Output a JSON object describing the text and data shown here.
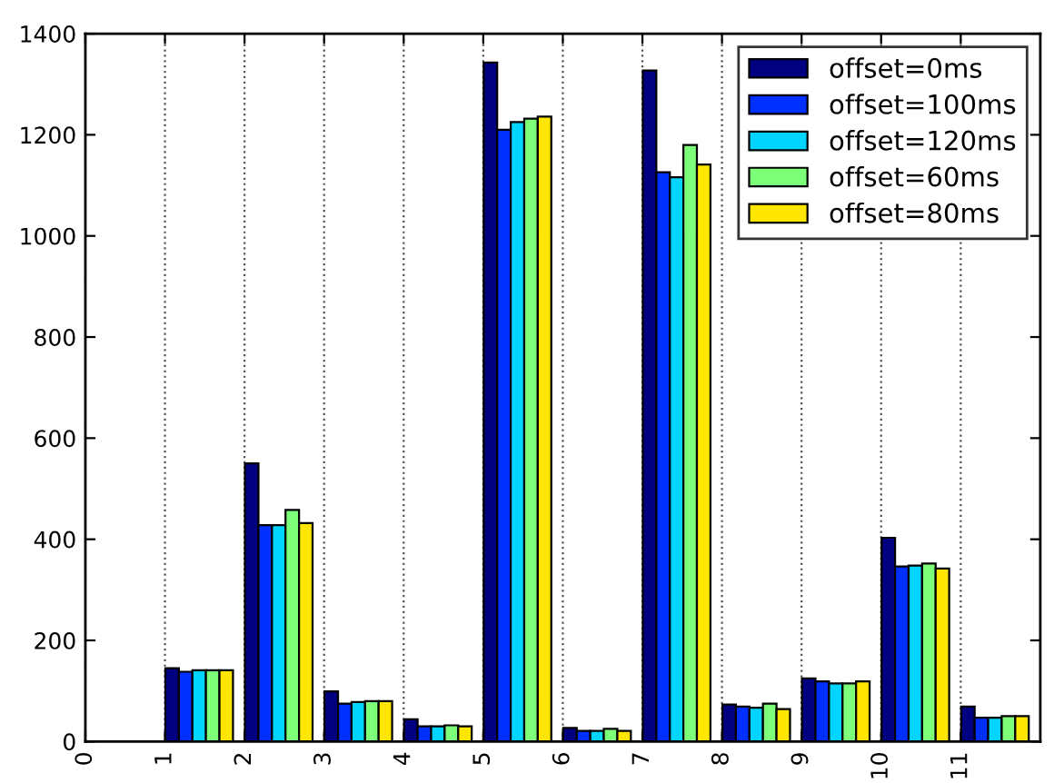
{
  "chart_data": {
    "type": "bar",
    "xlim": [
      0,
      12
    ],
    "xticks": [
      0,
      1,
      2,
      3,
      4,
      5,
      6,
      7,
      8,
      9,
      10,
      11
    ],
    "ylim": [
      0,
      1400
    ],
    "yticks": [
      0,
      200,
      400,
      600,
      800,
      1000,
      1200,
      1400
    ],
    "grid": "x",
    "legend": "top right",
    "series": [
      {
        "name": "offset=0ms",
        "color": "#000080",
        "x": [
          1.09,
          2.09,
          3.09,
          4.09,
          5.09,
          6.09,
          7.09,
          8.09,
          9.09,
          10.09,
          11.09
        ],
        "values": [
          145,
          550,
          99,
          44,
          1343,
          27,
          1327,
          73,
          125,
          403,
          69
        ]
      },
      {
        "name": "offset=100ms",
        "color": "#0030ff",
        "x": [
          1.26,
          2.26,
          3.26,
          4.26,
          5.26,
          6.26,
          7.26,
          8.26,
          9.26,
          10.26,
          11.26
        ],
        "values": [
          138,
          428,
          75,
          30,
          1210,
          21,
          1126,
          69,
          119,
          346,
          47
        ]
      },
      {
        "name": "offset=120ms",
        "color": "#00d4ff",
        "x": [
          1.43,
          2.43,
          3.43,
          4.43,
          5.43,
          6.43,
          7.43,
          8.43,
          9.43,
          10.43,
          11.43
        ],
        "values": [
          141,
          428,
          78,
          30,
          1225,
          21,
          1116,
          67,
          115,
          348,
          47
        ]
      },
      {
        "name": "offset=60ms",
        "color": "#7dff7a",
        "x": [
          1.6,
          2.6,
          3.6,
          4.6,
          5.6,
          6.6,
          7.6,
          8.6,
          9.6,
          10.6,
          11.6
        ],
        "values": [
          141,
          458,
          80,
          32,
          1232,
          25,
          1180,
          75,
          115,
          352,
          50
        ]
      },
      {
        "name": "offset=80ms",
        "color": "#ffe600",
        "x": [
          1.77,
          2.77,
          3.77,
          4.77,
          5.77,
          6.77,
          7.77,
          8.77,
          9.77,
          10.77,
          11.77
        ],
        "values": [
          141,
          432,
          80,
          30,
          1236,
          21,
          1141,
          64,
          119,
          342,
          50
        ]
      }
    ]
  }
}
